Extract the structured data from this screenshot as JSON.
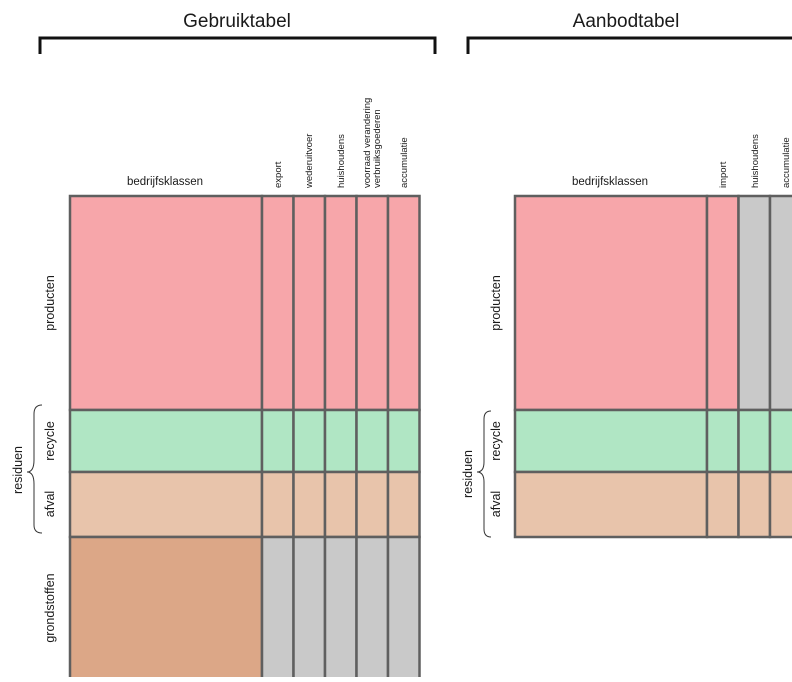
{
  "colors": {
    "producten": "#f7a6aa",
    "recycle": "#b0e6c4",
    "afval": "#e8c4ab",
    "grondstoffen": "#dca787",
    "empty": "#c9c9c9",
    "border": "#5f5f5f"
  },
  "gebruik": {
    "title": "Gebruiktabel",
    "main_col": "bedrijfsklassen",
    "cols": [
      "export",
      "wederuitvoer",
      "huishoudens",
      "voorraad verandering",
      "verbruiksgoederen",
      "accumulatie"
    ],
    "rows": [
      "producten",
      "recycle",
      "afval",
      "grondstoffen"
    ],
    "group": "residuen"
  },
  "aanbod": {
    "title": "Aanbodtabel",
    "main_col": "bedrijfsklassen",
    "cols": [
      "import",
      "huishoudens",
      "accumulatie"
    ],
    "rows": [
      "producten",
      "recycle",
      "afval"
    ],
    "group": "residuen"
  }
}
